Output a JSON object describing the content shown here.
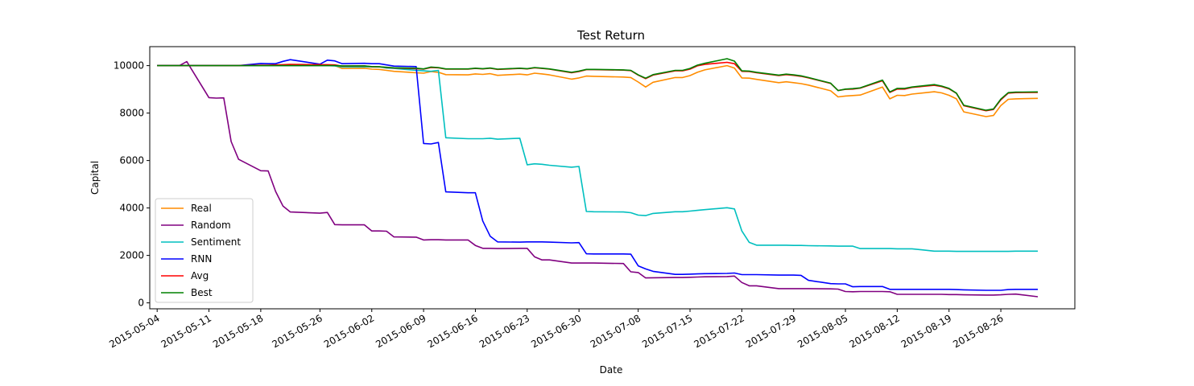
{
  "chart_data": {
    "type": "line",
    "title": "Test Return",
    "xlabel": "Date",
    "ylabel": "Capital",
    "x_tick_labels": [
      "2015-05-04",
      "2015-05-11",
      "2015-05-18",
      "2015-05-26",
      "2015-06-02",
      "2015-06-09",
      "2015-06-16",
      "2015-06-23",
      "2015-06-30",
      "2015-07-08",
      "2015-07-15",
      "2015-07-22",
      "2015-07-29",
      "2015-08-05",
      "2015-08-12",
      "2015-08-19",
      "2015-08-26"
    ],
    "y_ticks": [
      0,
      2000,
      4000,
      6000,
      8000,
      10000
    ],
    "ylim": [
      -250,
      10800
    ],
    "xlim": [
      "2015-05-03",
      "2015-09-05"
    ],
    "grid": false,
    "legend_position": "lower-left",
    "dates": [
      "2015-05-04",
      "2015-05-05",
      "2015-05-06",
      "2015-05-07",
      "2015-05-08",
      "2015-05-11",
      "2015-05-12",
      "2015-05-13",
      "2015-05-14",
      "2015-05-15",
      "2015-05-18",
      "2015-05-19",
      "2015-05-20",
      "2015-05-21",
      "2015-05-22",
      "2015-05-26",
      "2015-05-27",
      "2015-05-28",
      "2015-05-29",
      "2015-06-01",
      "2015-06-02",
      "2015-06-03",
      "2015-06-04",
      "2015-06-05",
      "2015-06-08",
      "2015-06-09",
      "2015-06-10",
      "2015-06-11",
      "2015-06-12",
      "2015-06-15",
      "2015-06-16",
      "2015-06-17",
      "2015-06-18",
      "2015-06-19",
      "2015-06-22",
      "2015-06-23",
      "2015-06-24",
      "2015-06-25",
      "2015-06-26",
      "2015-06-29",
      "2015-06-30",
      "2015-07-01",
      "2015-07-02",
      "2015-07-06",
      "2015-07-07",
      "2015-07-08",
      "2015-07-09",
      "2015-07-10",
      "2015-07-13",
      "2015-07-14",
      "2015-07-15",
      "2015-07-16",
      "2015-07-17",
      "2015-07-20",
      "2015-07-21",
      "2015-07-22",
      "2015-07-23",
      "2015-07-24",
      "2015-07-27",
      "2015-07-28",
      "2015-07-29",
      "2015-07-30",
      "2015-07-31",
      "2015-08-03",
      "2015-08-04",
      "2015-08-05",
      "2015-08-06",
      "2015-08-07",
      "2015-08-10",
      "2015-08-11",
      "2015-08-12",
      "2015-08-13",
      "2015-08-14",
      "2015-08-17",
      "2015-08-18",
      "2015-08-19",
      "2015-08-20",
      "2015-08-21",
      "2015-08-24",
      "2015-08-25",
      "2015-08-26",
      "2015-08-27",
      "2015-08-28",
      "2015-08-31"
    ],
    "series": [
      {
        "name": "Real",
        "color": "#ff8c00",
        "values": [
          10000,
          10000,
          10000,
          10000,
          10000,
          10000,
          10000,
          10000,
          10000,
          10000,
          10000,
          10000,
          10000,
          10000,
          10000,
          10000,
          10000,
          10000,
          9880,
          9890,
          9850,
          9840,
          9800,
          9760,
          9700,
          9680,
          9750,
          9720,
          9620,
          9610,
          9650,
          9630,
          9660,
          9590,
          9640,
          9610,
          9680,
          9650,
          9610,
          9430,
          9480,
          9560,
          9550,
          9520,
          9500,
          9310,
          9100,
          9300,
          9500,
          9500,
          9580,
          9720,
          9820,
          10000,
          9900,
          9480,
          9470,
          9420,
          9280,
          9320,
          9280,
          9240,
          9180,
          8940,
          8680,
          8720,
          8740,
          8760,
          9100,
          8600,
          8750,
          8740,
          8800,
          8900,
          8850,
          8750,
          8600,
          8050,
          7850,
          7900,
          8320,
          8580,
          8600,
          8620
        ]
      },
      {
        "name": "Random",
        "color": "#800080",
        "values": [
          10000,
          10000,
          10000,
          10000,
          10170,
          8650,
          8630,
          8640,
          6800,
          6050,
          5570,
          5560,
          4700,
          4080,
          3830,
          3780,
          3810,
          3300,
          3290,
          3290,
          3030,
          3030,
          3020,
          2780,
          2770,
          2650,
          2660,
          2660,
          2650,
          2650,
          2420,
          2300,
          2300,
          2290,
          2300,
          2300,
          1940,
          1810,
          1810,
          1680,
          1680,
          1680,
          1680,
          1660,
          1310,
          1280,
          1050,
          1060,
          1070,
          1070,
          1080,
          1090,
          1100,
          1110,
          1130,
          860,
          720,
          720,
          600,
          600,
          600,
          600,
          600,
          590,
          580,
          480,
          470,
          480,
          480,
          470,
          360,
          360,
          360,
          360,
          360,
          350,
          350,
          340,
          330,
          330,
          340,
          360,
          370,
          260
        ]
      },
      {
        "name": "Sentiment",
        "color": "#00bfbf",
        "values": [
          10000,
          10000,
          10000,
          10000,
          10000,
          10000,
          10000,
          10000,
          10000,
          10000,
          10000,
          10000,
          10000,
          10000,
          10000,
          10000,
          10000,
          9990,
          9950,
          9950,
          9950,
          9950,
          9900,
          9880,
          9800,
          9780,
          9760,
          9800,
          6960,
          6920,
          6920,
          6920,
          6940,
          6900,
          6940,
          5820,
          5860,
          5840,
          5800,
          5720,
          5750,
          3850,
          3840,
          3830,
          3800,
          3700,
          3680,
          3770,
          3840,
          3840,
          3870,
          3900,
          3930,
          4010,
          3960,
          3030,
          2550,
          2430,
          2430,
          2430,
          2420,
          2420,
          2410,
          2400,
          2390,
          2390,
          2390,
          2290,
          2290,
          2290,
          2280,
          2280,
          2280,
          2180,
          2180,
          2180,
          2170,
          2170,
          2170,
          2170,
          2170,
          2170,
          2180,
          2180
        ]
      },
      {
        "name": "RNN",
        "color": "#0000ff",
        "values": [
          10000,
          10000,
          10000,
          10000,
          10000,
          10000,
          10000,
          10000,
          10000,
          10000,
          10090,
          10080,
          10080,
          10180,
          10250,
          10060,
          10230,
          10200,
          10080,
          10100,
          10080,
          10080,
          10030,
          9980,
          9960,
          6720,
          6700,
          6760,
          4680,
          4640,
          4640,
          3450,
          2810,
          2570,
          2560,
          2570,
          2570,
          2570,
          2560,
          2530,
          2540,
          2070,
          2060,
          2060,
          2050,
          1560,
          1430,
          1330,
          1200,
          1200,
          1210,
          1220,
          1230,
          1240,
          1260,
          1190,
          1190,
          1190,
          1170,
          1170,
          1170,
          1160,
          950,
          810,
          800,
          800,
          680,
          690,
          690,
          570,
          570,
          570,
          570,
          570,
          570,
          570,
          560,
          550,
          530,
          530,
          530,
          560,
          570,
          570
        ]
      },
      {
        "name": "Avg",
        "color": "#ff0000",
        "values": [
          10000,
          10000,
          10000,
          10000,
          10000,
          10000,
          10000,
          10000,
          10000,
          10000,
          10020,
          10020,
          10030,
          10040,
          10050,
          10040,
          10040,
          10030,
          9980,
          9990,
          9950,
          9950,
          9920,
          9900,
          9870,
          9850,
          9920,
          9910,
          9850,
          9850,
          9880,
          9860,
          9890,
          9840,
          9880,
          9860,
          9910,
          9880,
          9850,
          9700,
          9750,
          9830,
          9830,
          9810,
          9790,
          9600,
          9450,
          9600,
          9780,
          9780,
          9850,
          9990,
          10050,
          10140,
          10080,
          9760,
          9750,
          9700,
          9580,
          9620,
          9590,
          9550,
          9480,
          9250,
          8950,
          9000,
          9010,
          9050,
          9360,
          8870,
          9010,
          9010,
          9080,
          9170,
          9120,
          9020,
          8830,
          8310,
          8100,
          8150,
          8560,
          8840,
          8860,
          8870
        ]
      },
      {
        "name": "Best",
        "color": "#008000",
        "values": [
          10000,
          10000,
          10000,
          10000,
          10000,
          10000,
          10000,
          10000,
          10000,
          10000,
          10000,
          10000,
          10000,
          10000,
          10000,
          10000,
          10000,
          10000,
          9990,
          9990,
          9960,
          9950,
          9930,
          9910,
          9890,
          9860,
          9940,
          9920,
          9860,
          9860,
          9890,
          9870,
          9900,
          9850,
          9890,
          9870,
          9920,
          9890,
          9860,
          9720,
          9770,
          9840,
          9840,
          9820,
          9800,
          9610,
          9470,
          9620,
          9800,
          9800,
          9880,
          10020,
          10100,
          10290,
          10190,
          9780,
          9770,
          9720,
          9600,
          9640,
          9610,
          9570,
          9500,
          9260,
          8950,
          9010,
          9030,
          9060,
          9390,
          8890,
          9040,
          9040,
          9100,
          9200,
          9140,
          9040,
          8840,
          8330,
          8120,
          8170,
          8590,
          8860,
          8880,
          8890
        ]
      }
    ]
  }
}
